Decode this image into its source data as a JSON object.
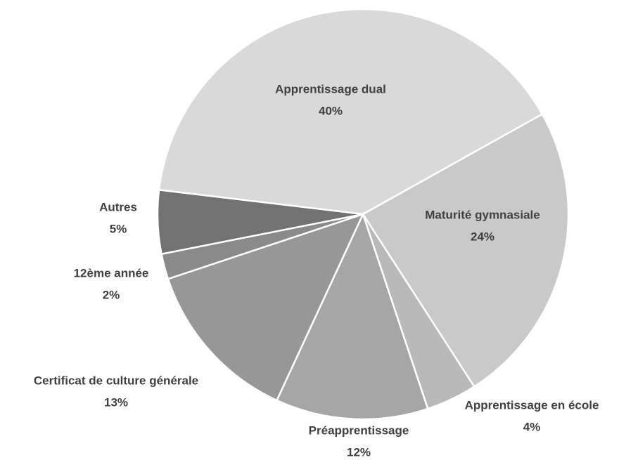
{
  "chart_data": {
    "type": "pie",
    "categories": [
      "Apprentissage dual",
      "Maturité gymnasiale",
      "Apprentissage en école",
      "Préapprentissage",
      "Certificat de culture générale",
      "12ème année",
      "Autres"
    ],
    "values": [
      40,
      24,
      4,
      12,
      13,
      2,
      5
    ],
    "value_labels": [
      "40%",
      "24%",
      "4%",
      "12%",
      "13%",
      "2%",
      "5%"
    ],
    "colors": [
      "#d9d9d9",
      "#c9c9c9",
      "#b9b9b9",
      "#a6a6a6",
      "#979797",
      "#8a8a8a",
      "#727272"
    ]
  }
}
